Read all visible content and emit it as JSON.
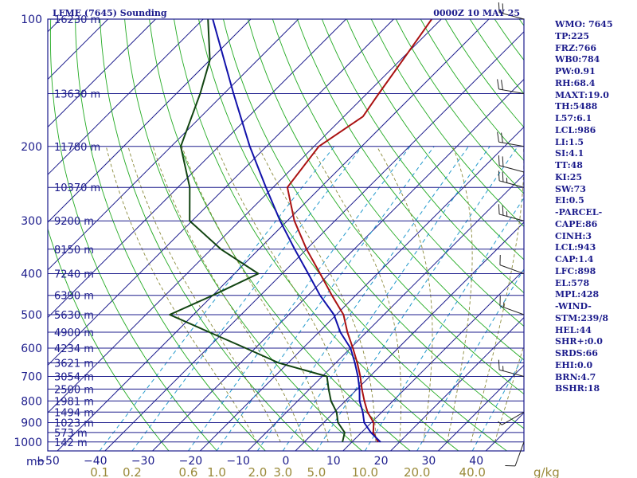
{
  "header": {
    "title_left": "LFME (7645) Sounding",
    "title_right": "0000Z 10 MAY 25"
  },
  "colors": {
    "frame": "#1c1c8c",
    "isobar": "#1c1c8c",
    "isotherm": "#1c1c8c",
    "dry_adiabat": "#22aa22",
    "moist_adiabat": "#8a8a3a",
    "mixing_ratio": "#2299cc",
    "temperature": "#aa1111",
    "dewpoint": "#114411",
    "parcel": "#1111aa",
    "wind_barb": "#222222"
  },
  "chart_data": {
    "type": "skew-t log-p sounding diagram",
    "pressure_unit": "mb",
    "pressure_levels": [
      100,
      200,
      300,
      400,
      500,
      600,
      700,
      800,
      900,
      1000
    ],
    "pressure_range": [
      100,
      1050
    ],
    "temperature_ticks": [
      "−50",
      "−40",
      "−30",
      "−20",
      "−10",
      "0",
      "10",
      "20",
      "30",
      "40"
    ],
    "temperature_range_at_bottom": [
      -50,
      50
    ],
    "mixing_ratio_unit": "g/kg",
    "mixing_ratio_ticks": [
      "0.1",
      "0.2",
      "0.6",
      "1.0",
      "2.0",
      "3.0",
      "5.0",
      "10.0",
      "20.0",
      "40.0"
    ],
    "heights": [
      {
        "p": 100,
        "label": "16230 m"
      },
      {
        "p": 150,
        "label": "13630 m"
      },
      {
        "p": 200,
        "label": "11780 m"
      },
      {
        "p": 250,
        "label": "10370 m"
      },
      {
        "p": 300,
        "label": "9200 m"
      },
      {
        "p": 350,
        "label": "8150 m"
      },
      {
        "p": 400,
        "label": "7240 m"
      },
      {
        "p": 450,
        "label": "6390 m"
      },
      {
        "p": 500,
        "label": "5630 m"
      },
      {
        "p": 550,
        "label": "4900 m"
      },
      {
        "p": 600,
        "label": "4234 m"
      },
      {
        "p": 650,
        "label": "3621 m"
      },
      {
        "p": 700,
        "label": "3054 m"
      },
      {
        "p": 750,
        "label": "2500 m"
      },
      {
        "p": 800,
        "label": "1981 m"
      },
      {
        "p": 850,
        "label": "1494 m"
      },
      {
        "p": 900,
        "label": "1023 m"
      },
      {
        "p": 950,
        "label": "573 m"
      },
      {
        "p": 1000,
        "label": "142 m"
      }
    ],
    "series": [
      {
        "name": "Temperature",
        "points": [
          [
            1000,
            15.5
          ],
          [
            950,
            12.5
          ],
          [
            900,
            10.5
          ],
          [
            850,
            7.0
          ],
          [
            800,
            4.0
          ],
          [
            750,
            1.0
          ],
          [
            700,
            -2.0
          ],
          [
            650,
            -5.5
          ],
          [
            600,
            -9.5
          ],
          [
            550,
            -14.0
          ],
          [
            500,
            -18.5
          ],
          [
            450,
            -25.0
          ],
          [
            400,
            -32.0
          ],
          [
            350,
            -40.0
          ],
          [
            300,
            -48.5
          ],
          [
            250,
            -57.0
          ],
          [
            200,
            -59.0
          ],
          [
            170,
            -56.0
          ],
          [
            150,
            -57.5
          ],
          [
            125,
            -59.5
          ],
          [
            100,
            -62.0
          ]
        ]
      },
      {
        "name": "Dewpoint",
        "points": [
          [
            1000,
            8.0
          ],
          [
            950,
            6.5
          ],
          [
            900,
            3.0
          ],
          [
            850,
            0.5
          ],
          [
            800,
            -3.0
          ],
          [
            750,
            -6.0
          ],
          [
            700,
            -9.0
          ],
          [
            650,
            -22.0
          ],
          [
            600,
            -32.0
          ],
          [
            550,
            -43.0
          ],
          [
            500,
            -55.0
          ],
          [
            450,
            -50.0
          ],
          [
            400,
            -45.0
          ],
          [
            350,
            -58.0
          ],
          [
            300,
            -70.5
          ],
          [
            250,
            -77.5
          ],
          [
            200,
            -88.0
          ],
          [
            150,
            -95.0
          ],
          [
            125,
            -100.0
          ],
          [
            100,
            -109.0
          ]
        ]
      },
      {
        "name": "Parcel",
        "points": [
          [
            1000,
            16.0
          ],
          [
            950,
            12.0
          ],
          [
            900,
            8.5
          ],
          [
            850,
            6.0
          ],
          [
            800,
            3.0
          ],
          [
            750,
            0.5
          ],
          [
            700,
            -2.5
          ],
          [
            650,
            -6.0
          ],
          [
            600,
            -10.0
          ],
          [
            550,
            -15.5
          ],
          [
            500,
            -20.5
          ],
          [
            450,
            -27.5
          ],
          [
            400,
            -34.5
          ],
          [
            350,
            -42.5
          ],
          [
            300,
            -51.5
          ],
          [
            250,
            -61.5
          ],
          [
            200,
            -73.5
          ],
          [
            150,
            -88.0
          ],
          [
            125,
            -97.0
          ],
          [
            100,
            -108.0
          ]
        ]
      }
    ],
    "wind_barbs": [
      {
        "p": 1000,
        "dir": 200,
        "speed": 10
      },
      {
        "p": 850,
        "dir": 240,
        "speed": 5
      },
      {
        "p": 700,
        "dir": 285,
        "speed": 15
      },
      {
        "p": 500,
        "dir": 290,
        "speed": 15
      },
      {
        "p": 400,
        "dir": 290,
        "speed": 10
      },
      {
        "p": 300,
        "dir": 285,
        "speed": 25
      },
      {
        "p": 250,
        "dir": 285,
        "speed": 25
      },
      {
        "p": 230,
        "dir": 285,
        "speed": 20
      },
      {
        "p": 200,
        "dir": 280,
        "speed": 20
      },
      {
        "p": 150,
        "dir": 280,
        "speed": 20
      },
      {
        "p": 100,
        "dir": 285,
        "speed": 20
      }
    ],
    "grid": true
  },
  "indices": [
    "WMO: 7645",
    "TP:225",
    "FRZ:766",
    "WB0:784",
    "PW:0.91",
    "RH:68.4",
    "MAXT:19.0",
    "TH:5488",
    "L57:6.1",
    "LCL:986",
    "LI:1.5",
    "SI:4.1",
    "TT:48",
    "KI:25",
    "SW:73",
    "EI:0.5",
    "-PARCEL-",
    "CAPE:86",
    "CINH:3",
    "LCL:943",
    "CAP:1.4",
    "LFC:898",
    "EL:578",
    "MPL:428",
    "-WIND-",
    "STM:239/8",
    "HEL:44",
    "SHR+:0.0",
    "SRDS:66",
    "EHI:0.0",
    "BRN:4.7",
    "BSHR:18"
  ]
}
